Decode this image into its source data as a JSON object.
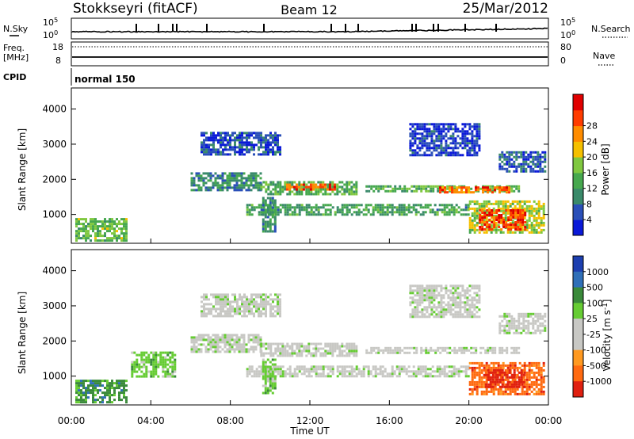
{
  "header": {
    "station": "Stokkseyri (fitACF)",
    "beam": "Beam 12",
    "date": "25/Mar/2012"
  },
  "left_labels": {
    "nsky": "N.Sky",
    "freq": "Freq.",
    "mhz": "[MHz]",
    "cpid": "CPID"
  },
  "right_labels": {
    "nsearch": "N.Search",
    "nave": "Nave"
  },
  "noise_panel": {
    "left_ticks": [
      "10^5",
      "10^0"
    ],
    "right_ticks": [
      "10^5",
      "10^0"
    ]
  },
  "freq_panel": {
    "left_ticks": [
      "18",
      "8"
    ],
    "right_ticks": [
      "80",
      "0"
    ]
  },
  "cpid_panel": {
    "label": "normal 150"
  },
  "colors": {
    "velocity_scale": [
      "#1d3fb0",
      "#2f6fb8",
      "#3a8a3a",
      "#66cc33",
      "#c8c8c4",
      "#c8c8c4",
      "#ff9920",
      "#ff6a10",
      "#e02010"
    ],
    "power_scale": [
      "#0a19d8",
      "#2a4fb8",
      "#3a8a6a",
      "#46a84e",
      "#80c840",
      "#f5c000",
      "#ff8c00",
      "#ff3c00",
      "#e00000"
    ]
  },
  "chart_data": [
    {
      "type": "heatmap",
      "name": "power",
      "ylabel": "Slant Range [km]",
      "ylim": [
        180,
        4600
      ],
      "yticks": [
        "1000",
        "2000",
        "3000",
        "4000"
      ],
      "xlim": [
        0,
        24
      ],
      "colorbar": {
        "label": "Power [dB]",
        "ticks": [
          "4",
          "8",
          "12",
          "16",
          "20",
          "24",
          "28"
        ],
        "range": [
          0,
          32
        ]
      },
      "regions": [
        {
          "x0": 0.2,
          "x1": 2.8,
          "y0": 280,
          "y1": 900,
          "val": 14
        },
        {
          "x0": 6.0,
          "x1": 9.5,
          "y0": 1700,
          "y1": 2200,
          "val": 9
        },
        {
          "x0": 9.5,
          "x1": 14.3,
          "y0": 1600,
          "y1": 1950,
          "val": 13
        },
        {
          "x0": 10.8,
          "x1": 13.2,
          "y0": 1680,
          "y1": 1880,
          "val": 26
        },
        {
          "x0": 14.8,
          "x1": 22.5,
          "y0": 1630,
          "y1": 1830,
          "val": 13
        },
        {
          "x0": 18.5,
          "x1": 22.0,
          "y0": 1660,
          "y1": 1800,
          "val": 25
        },
        {
          "x0": 8.8,
          "x1": 20.0,
          "y0": 1000,
          "y1": 1300,
          "val": 11
        },
        {
          "x0": 20.0,
          "x1": 23.8,
          "y0": 500,
          "y1": 1400,
          "val": 17
        },
        {
          "x0": 20.5,
          "x1": 22.8,
          "y0": 600,
          "y1": 1150,
          "val": 27
        },
        {
          "x0": 6.5,
          "x1": 10.5,
          "y0": 2700,
          "y1": 3350,
          "val": 5
        },
        {
          "x0": 17.0,
          "x1": 20.5,
          "y0": 2700,
          "y1": 3600,
          "val": 4
        },
        {
          "x0": 21.5,
          "x1": 23.8,
          "y0": 2200,
          "y1": 2800,
          "val": 6
        },
        {
          "x0": 9.6,
          "x1": 10.3,
          "y0": 500,
          "y1": 1500,
          "val": 9
        }
      ]
    },
    {
      "type": "heatmap",
      "name": "velocity",
      "ylabel": "Slant Range [km]",
      "ylim": [
        180,
        4600
      ],
      "yticks": [
        "1000",
        "2000",
        "3000",
        "4000"
      ],
      "xlabel": "Time UT",
      "xticks": [
        "00:00",
        "04:00",
        "08:00",
        "12:00",
        "16:00",
        "20:00",
        "00:00"
      ],
      "xlim": [
        0,
        24
      ],
      "colorbar": {
        "label": "Velocity [m s^-1]",
        "ticks": [
          "1000",
          "500",
          "100",
          "25",
          "-25",
          "-100",
          "-500",
          "-1000"
        ]
      },
      "regions": [
        {
          "x0": 0.2,
          "x1": 2.8,
          "y0": 280,
          "y1": 900,
          "val": 2
        },
        {
          "x0": 6.5,
          "x1": 10.5,
          "y0": 2700,
          "y1": 3350,
          "val": 4
        },
        {
          "x0": 6.0,
          "x1": 9.5,
          "y0": 1700,
          "y1": 2200,
          "val": 4
        },
        {
          "x0": 9.5,
          "x1": 14.3,
          "y0": 1600,
          "y1": 1950,
          "val": 4
        },
        {
          "x0": 14.8,
          "x1": 22.5,
          "y0": 1630,
          "y1": 1830,
          "val": 4
        },
        {
          "x0": 8.8,
          "x1": 20.0,
          "y0": 1000,
          "y1": 1300,
          "val": 4
        },
        {
          "x0": 17.0,
          "x1": 20.5,
          "y0": 2700,
          "y1": 3600,
          "val": 4
        },
        {
          "x0": 21.5,
          "x1": 23.8,
          "y0": 2200,
          "y1": 2800,
          "val": 4
        },
        {
          "x0": 20.0,
          "x1": 23.8,
          "y0": 500,
          "y1": 1400,
          "val": 7
        },
        {
          "x0": 20.8,
          "x1": 22.8,
          "y0": 700,
          "y1": 1200,
          "val": 8
        },
        {
          "x0": 3.0,
          "x1": 5.2,
          "y0": 1000,
          "y1": 1700,
          "val": 3
        },
        {
          "x0": 9.6,
          "x1": 10.3,
          "y0": 500,
          "y1": 1500,
          "val": 3
        }
      ]
    }
  ]
}
